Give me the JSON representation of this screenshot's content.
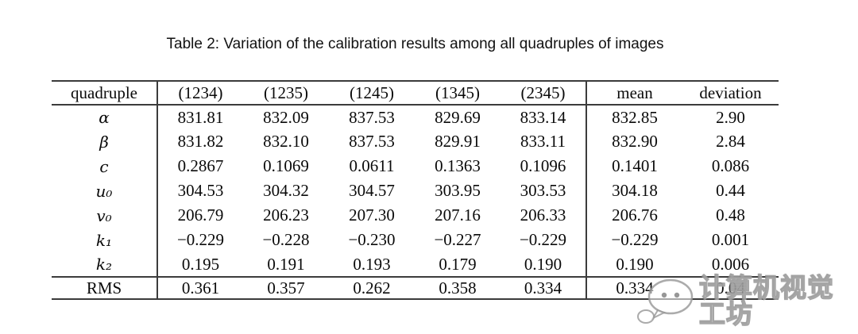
{
  "title": "Table 2: Variation of the calibration results among all quadruples of images",
  "table": {
    "header": [
      "quadruple",
      "(1234)",
      "(1235)",
      "(1245)",
      "(1345)",
      "(2345)",
      "mean",
      "deviation"
    ],
    "rows": [
      {
        "label": "α",
        "math": true,
        "rms": false,
        "values": [
          "831.81",
          "832.09",
          "837.53",
          "829.69",
          "833.14",
          "832.85",
          "2.90"
        ]
      },
      {
        "label": "β",
        "math": true,
        "rms": false,
        "values": [
          "831.82",
          "832.10",
          "837.53",
          "829.91",
          "833.11",
          "832.90",
          "2.84"
        ]
      },
      {
        "label": "c",
        "math": true,
        "rms": false,
        "values": [
          "0.2867",
          "0.1069",
          "0.0611",
          "0.1363",
          "0.1096",
          "0.1401",
          "0.086"
        ]
      },
      {
        "label": "u₀",
        "math": true,
        "rms": false,
        "values": [
          "304.53",
          "304.32",
          "304.57",
          "303.95",
          "303.53",
          "304.18",
          "0.44"
        ]
      },
      {
        "label": "v₀",
        "math": true,
        "rms": false,
        "values": [
          "206.79",
          "206.23",
          "207.30",
          "207.16",
          "206.33",
          "206.76",
          "0.48"
        ]
      },
      {
        "label": "k₁",
        "math": true,
        "rms": false,
        "values": [
          "−0.229",
          "−0.228",
          "−0.230",
          "−0.227",
          "−0.229",
          "−0.229",
          "0.001"
        ]
      },
      {
        "label": "k₂",
        "math": true,
        "rms": false,
        "values": [
          "0.195",
          "0.191",
          "0.193",
          "0.179",
          "0.190",
          "0.190",
          "0.006"
        ]
      },
      {
        "label": "RMS",
        "math": false,
        "rms": true,
        "values": [
          "0.361",
          "0.357",
          "0.262",
          "0.358",
          "0.334",
          "0.334",
          "0.04"
        ]
      }
    ]
  },
  "watermark": {
    "text": "计算机视觉工坊",
    "icon": "speech-bubble-logo",
    "color": "#8a8a8a"
  }
}
